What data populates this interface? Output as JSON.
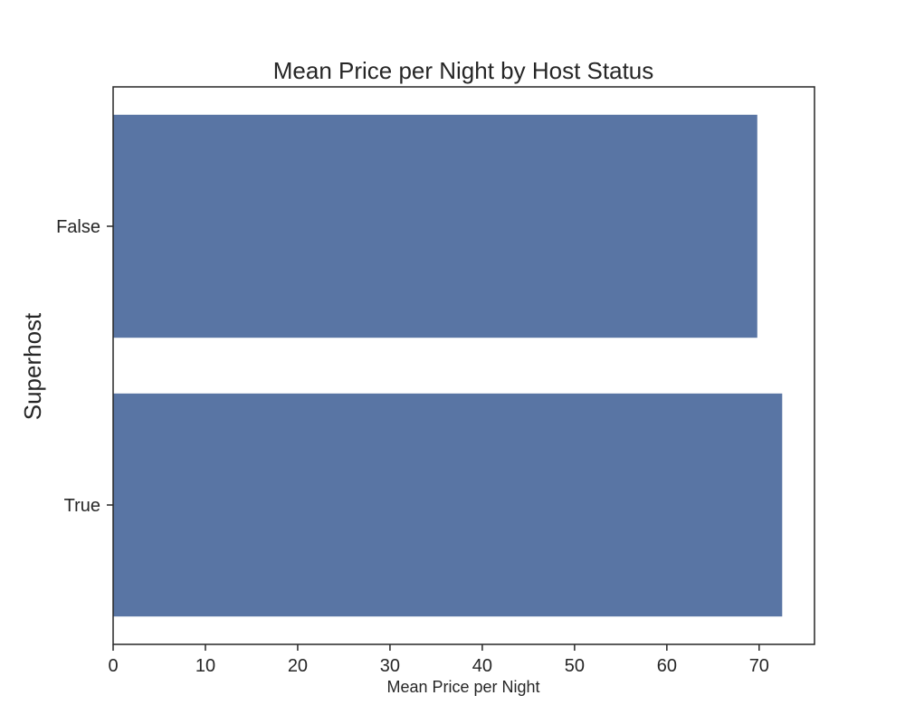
{
  "chart_data": {
    "type": "bar",
    "orientation": "horizontal",
    "title": "Mean Price per Night by Host Status",
    "xlabel": "Mean Price per Night",
    "ylabel": "Superhost",
    "categories": [
      "False",
      "True"
    ],
    "values": [
      69.8,
      72.5
    ],
    "xlim": [
      0,
      76
    ],
    "xticks": [
      0,
      10,
      20,
      30,
      40,
      50,
      60,
      70
    ],
    "grid": false,
    "legend": "none",
    "bar_color": "#5975a4"
  }
}
